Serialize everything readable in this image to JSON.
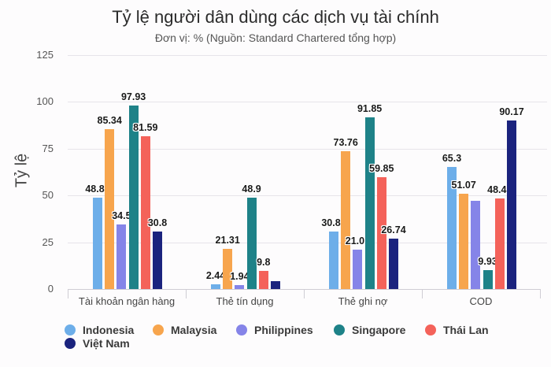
{
  "title": "Tỷ lệ người dân dùng các dịch vụ tài chính",
  "subtitle": "Đơn vị: % (Nguồn: Standard Chartered tổng hợp)",
  "chart_data": {
    "type": "bar",
    "title": "Tỷ lệ người dân dùng các dịch vụ tài chính",
    "subtitle": "Đơn vị: % (Nguồn: Standard Chartered tổng hợp)",
    "xlabel": "",
    "ylabel": "Tỷ lệ",
    "ylim": [
      0,
      125
    ],
    "yticks": [
      0,
      25,
      50,
      75,
      100,
      125
    ],
    "grid": true,
    "legend_position": "bottom",
    "categories": [
      "Tài khoản ngân hàng",
      "Thẻ tín dụng",
      "Thẻ ghi nợ",
      "COD"
    ],
    "series": [
      {
        "name": "Indonesia",
        "color": "#6daee9",
        "values": [
          48.86,
          2.44,
          30.81,
          65.3
        ],
        "labels": [
          "48.86",
          "2.44",
          "30.81",
          "65.3"
        ]
      },
      {
        "name": "Malaysia",
        "color": "#f7a54d",
        "values": [
          85.34,
          21.31,
          73.76,
          51.07
        ],
        "labels": [
          "85.34",
          "21.31",
          "73.76",
          "51.07"
        ]
      },
      {
        "name": "Philippines",
        "color": "#8584e8",
        "values": [
          34.5,
          1.94,
          21.01,
          47.1
        ],
        "labels": [
          "34.5",
          "1.94",
          "21.01",
          ""
        ]
      },
      {
        "name": "Singapore",
        "color": "#1e8288",
        "values": [
          97.93,
          48.9,
          91.85,
          9.93
        ],
        "labels": [
          "97.93",
          "48.9",
          "91.85",
          "9.93"
        ]
      },
      {
        "name": "Thái Lan",
        "color": "#f4625a",
        "values": [
          81.59,
          9.8,
          59.85,
          48.49
        ],
        "labels": [
          "81.59",
          "9.8",
          "59.85",
          "48.49"
        ]
      },
      {
        "name": "Việt Nam",
        "color": "#1b237e",
        "values": [
          30.8,
          4.2,
          26.74,
          90.17
        ],
        "labels": [
          "30.8",
          "",
          "26.74",
          "90.17"
        ]
      }
    ]
  }
}
